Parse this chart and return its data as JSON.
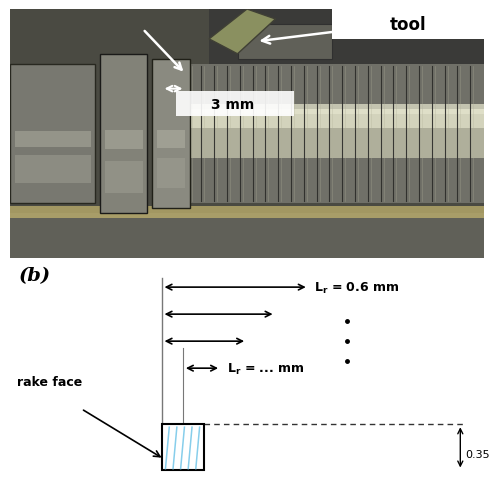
{
  "bg_color": "#ffffff",
  "label_b": "(b)",
  "label_tool": "tool",
  "label_3mm": "3 mm",
  "label_rake_face": "rake face",
  "label_Lr1": "L$_r$ = 0.6 mm",
  "label_Lr2": "L$_r$ = ... mm",
  "label_height_val": "0.35",
  "photo_bg": "#5a5a52",
  "photo_upper_bg": "#888880",
  "cylinder_light": "#c8c8b0",
  "cylinder_mid": "#909085",
  "cylinder_dark": "#3a3a35",
  "ring_face": "#6a6a60",
  "ring_edge": "#2a2a28",
  "tool_color": "#7a8060",
  "groove_color": "#282828",
  "top_machine_color": "#555550",
  "text_color_white": "#ffffff",
  "text_color_black": "#000000",
  "arrow_color_white": "#ffffff",
  "line_gray": "#777777",
  "blue_line": "#87ceeb",
  "dashed_color": "#333333"
}
